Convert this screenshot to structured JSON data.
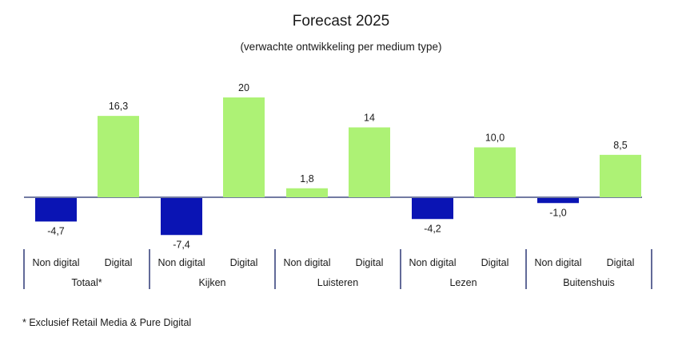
{
  "chart_data": {
    "type": "bar",
    "title": "Forecast 2025",
    "subtitle": "(verwachte ontwikkeling per medium type)",
    "groups": [
      {
        "name": "Totaal*",
        "bars": [
          {
            "label": "Non digital",
            "value": -4.7,
            "display": "-4,7"
          },
          {
            "label": "Digital",
            "value": 16.3,
            "display": "16,3"
          }
        ]
      },
      {
        "name": "Kijken",
        "bars": [
          {
            "label": "Non digital",
            "value": -7.4,
            "display": "-7,4"
          },
          {
            "label": "Digital",
            "value": 20,
            "display": "20"
          }
        ]
      },
      {
        "name": "Luisteren",
        "bars": [
          {
            "label": "Non digital",
            "value": 1.8,
            "display": "1,8"
          },
          {
            "label": "Digital",
            "value": 14,
            "display": "14"
          }
        ]
      },
      {
        "name": "Lezen",
        "bars": [
          {
            "label": "Non digital",
            "value": -4.2,
            "display": "-4,2"
          },
          {
            "label": "Digital",
            "value": 10.0,
            "display": "10,0"
          }
        ]
      },
      {
        "name": "Buitenshuis",
        "bars": [
          {
            "label": "Non digital",
            "value": -1.0,
            "display": "-1,0"
          },
          {
            "label": "Digital",
            "value": 8.5,
            "display": "8,5"
          }
        ]
      }
    ],
    "colors": {
      "negative": "#0a14b4",
      "positive": "#adf275",
      "axis": "#1f2a6b"
    },
    "ylim": [
      -8,
      20
    ],
    "grid": false,
    "footnote": "* Exclusief Retail Media & Pure Digital"
  }
}
